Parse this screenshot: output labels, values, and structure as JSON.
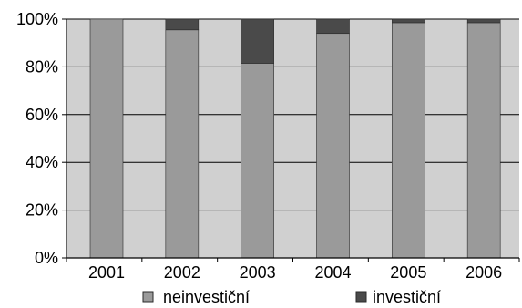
{
  "chart_data": {
    "type": "bar",
    "stacked": true,
    "percent_stacked": true,
    "categories": [
      "2001",
      "2002",
      "2003",
      "2004",
      "2005",
      "2006"
    ],
    "series": [
      {
        "name": "neinvestiční",
        "values": [
          100,
          95.5,
          81.5,
          94,
          98.5,
          98.5
        ]
      },
      {
        "name": "investiční",
        "values": [
          0,
          4.5,
          18.5,
          6,
          1.5,
          1.5
        ]
      }
    ],
    "ylim": [
      0,
      100
    ],
    "y_ticks": [
      "0%",
      "20%",
      "40%",
      "60%",
      "80%",
      "100%"
    ],
    "y_tick_values": [
      0,
      20,
      40,
      60,
      80,
      100
    ],
    "grid": true,
    "legend_position": "bottom",
    "colors": {
      "plot_background": "#d0d0d0",
      "neinvestiční": "#9a9a9a",
      "investiční": "#4a4a4a",
      "gridline": "#000000",
      "bar_border": "#2a2a2a"
    }
  }
}
